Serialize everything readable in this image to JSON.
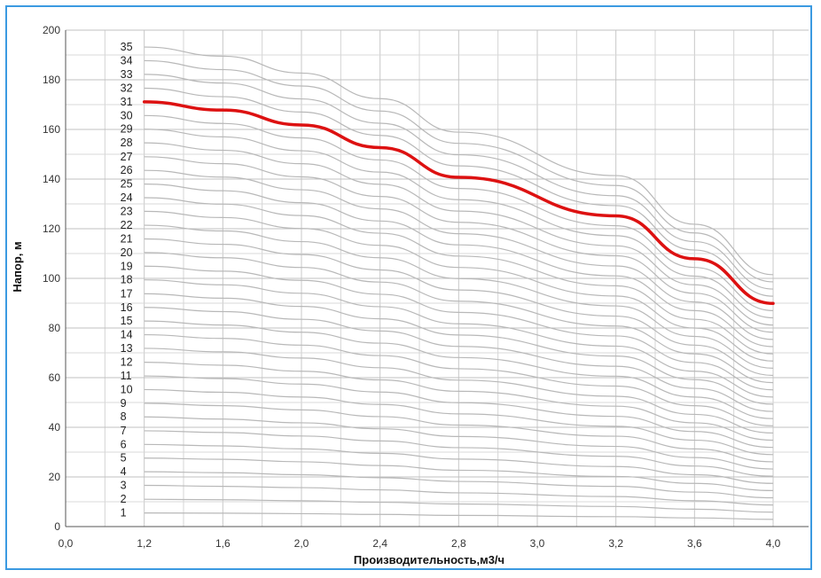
{
  "chart_data": {
    "type": "line",
    "title": "",
    "xlabel": "Производительность,м3/ч",
    "ylabel": "Напор, м",
    "xlim": [
      0.0,
      4.0
    ],
    "ylim": [
      0,
      200
    ],
    "x_ticks": [
      "0,0",
      "1,2",
      "1,6",
      "2,0",
      "2,4",
      "2,8",
      "3,0",
      "3,2",
      "3,6",
      "4,0"
    ],
    "y_ticks": [
      "0",
      "20",
      "40",
      "60",
      "80",
      "100",
      "120",
      "140",
      "160",
      "180",
      "200"
    ],
    "grid": true,
    "x": [
      1.2,
      1.6,
      2.0,
      2.4,
      2.8,
      3.2,
      3.6,
      4.0
    ],
    "highlight_stage": 31,
    "highlight_color": "#dd1111",
    "curve_color": "#b8b8b8",
    "stages": [
      "1",
      "2",
      "3",
      "4",
      "5",
      "6",
      "7",
      "8",
      "9",
      "10",
      "11",
      "12",
      "13",
      "14",
      "15",
      "16",
      "17",
      "18",
      "19",
      "20",
      "21",
      "22",
      "23",
      "24",
      "25",
      "26",
      "27",
      "28",
      "29",
      "30",
      "31",
      "32",
      "33",
      "34",
      "35"
    ],
    "series": [
      {
        "name": "1",
        "values": [
          5.5,
          5.4,
          5.2,
          4.9,
          4.5,
          4.0,
          3.5,
          2.9
        ]
      },
      {
        "name": "2",
        "values": [
          11.0,
          10.8,
          10.4,
          9.8,
          9.1,
          8.1,
          7.0,
          5.8
        ]
      },
      {
        "name": "3",
        "values": [
          16.6,
          16.2,
          15.7,
          14.8,
          13.6,
          12.1,
          10.4,
          8.7
        ]
      },
      {
        "name": "4",
        "values": [
          22.1,
          21.7,
          20.9,
          19.7,
          18.2,
          16.2,
          13.9,
          11.6
        ]
      },
      {
        "name": "5",
        "values": [
          27.6,
          27.1,
          26.1,
          24.6,
          22.7,
          20.2,
          17.4,
          14.5
        ]
      },
      {
        "name": "6",
        "values": [
          33.1,
          32.5,
          31.3,
          29.5,
          27.2,
          24.2,
          20.9,
          17.4
        ]
      },
      {
        "name": "7",
        "values": [
          38.6,
          37.9,
          36.5,
          34.5,
          31.8,
          28.3,
          24.4,
          20.3
        ]
      },
      {
        "name": "8",
        "values": [
          44.2,
          43.3,
          41.8,
          39.4,
          36.3,
          32.3,
          27.8,
          23.2
        ]
      },
      {
        "name": "9",
        "values": [
          49.7,
          48.7,
          47.0,
          44.3,
          40.9,
          36.4,
          31.3,
          26.1
        ]
      },
      {
        "name": "10",
        "values": [
          55.2,
          54.1,
          52.2,
          49.2,
          45.4,
          40.4,
          34.8,
          29.0
        ]
      },
      {
        "name": "11",
        "values": [
          60.7,
          59.6,
          57.4,
          54.2,
          49.9,
          44.4,
          38.3,
          31.9
        ]
      },
      {
        "name": "12",
        "values": [
          66.2,
          65.0,
          62.6,
          59.1,
          54.5,
          48.5,
          41.8,
          34.8
        ]
      },
      {
        "name": "13",
        "values": [
          71.8,
          70.4,
          67.9,
          64.0,
          59.0,
          52.5,
          45.2,
          37.7
        ]
      },
      {
        "name": "14",
        "values": [
          77.3,
          75.8,
          73.1,
          68.9,
          63.6,
          56.6,
          48.7,
          40.6
        ]
      },
      {
        "name": "15",
        "values": [
          82.8,
          81.2,
          78.3,
          73.9,
          68.1,
          60.6,
          52.2,
          43.5
        ]
      },
      {
        "name": "16",
        "values": [
          88.3,
          86.6,
          83.5,
          78.8,
          72.6,
          64.6,
          55.7,
          46.4
        ]
      },
      {
        "name": "17",
        "values": [
          93.8,
          92.0,
          88.7,
          83.7,
          77.2,
          68.7,
          59.2,
          49.3
        ]
      },
      {
        "name": "18",
        "values": [
          99.4,
          97.4,
          94.0,
          88.6,
          81.7,
          72.7,
          62.6,
          52.2
        ]
      },
      {
        "name": "19",
        "values": [
          104.9,
          102.9,
          99.2,
          93.6,
          86.3,
          76.8,
          66.1,
          55.1
        ]
      },
      {
        "name": "20",
        "values": [
          110.4,
          108.3,
          104.4,
          98.5,
          90.8,
          80.8,
          69.6,
          58.0
        ]
      },
      {
        "name": "21",
        "values": [
          115.9,
          113.7,
          109.6,
          103.4,
          95.3,
          84.8,
          73.1,
          60.9
        ]
      },
      {
        "name": "22",
        "values": [
          121.4,
          119.1,
          114.8,
          108.3,
          99.9,
          88.9,
          76.6,
          63.8
        ]
      },
      {
        "name": "23",
        "values": [
          127.0,
          124.5,
          120.1,
          113.3,
          104.4,
          92.9,
          80.0,
          66.7
        ]
      },
      {
        "name": "24",
        "values": [
          132.5,
          129.9,
          125.3,
          118.2,
          109.0,
          97.0,
          83.5,
          69.6
        ]
      },
      {
        "name": "25",
        "values": [
          138.0,
          135.3,
          130.5,
          123.1,
          113.5,
          101.0,
          87.0,
          72.5
        ]
      },
      {
        "name": "26",
        "values": [
          143.5,
          140.8,
          135.7,
          128.0,
          118.0,
          105.0,
          90.5,
          75.4
        ]
      },
      {
        "name": "27",
        "values": [
          149.0,
          146.2,
          140.9,
          133.0,
          122.6,
          109.1,
          94.0,
          78.3
        ]
      },
      {
        "name": "28",
        "values": [
          154.6,
          151.6,
          146.2,
          137.9,
          127.1,
          113.1,
          97.4,
          81.2
        ]
      },
      {
        "name": "29",
        "values": [
          160.1,
          157.0,
          151.4,
          142.8,
          131.7,
          117.2,
          100.9,
          84.1
        ]
      },
      {
        "name": "30",
        "values": [
          165.6,
          162.4,
          156.6,
          147.7,
          136.2,
          121.2,
          104.4,
          87.0
        ]
      },
      {
        "name": "31",
        "values": [
          171.1,
          167.8,
          161.8,
          152.7,
          140.7,
          125.2,
          107.9,
          89.9
        ]
      },
      {
        "name": "32",
        "values": [
          176.6,
          173.2,
          167.0,
          157.6,
          145.3,
          129.3,
          111.4,
          92.8
        ]
      },
      {
        "name": "33",
        "values": [
          182.2,
          178.7,
          172.3,
          162.5,
          149.8,
          133.3,
          114.8,
          95.7
        ]
      },
      {
        "name": "34",
        "values": [
          187.7,
          184.1,
          177.5,
          167.4,
          154.4,
          137.4,
          118.3,
          98.6
        ]
      },
      {
        "name": "35",
        "values": [
          193.2,
          189.5,
          182.7,
          172.4,
          158.9,
          141.4,
          121.8,
          101.5
        ]
      }
    ]
  }
}
